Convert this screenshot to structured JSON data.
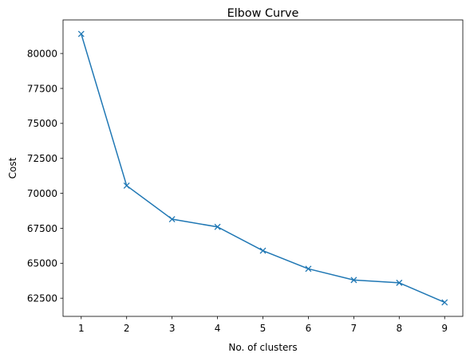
{
  "chart_data": {
    "type": "line",
    "title": "Elbow Curve",
    "xlabel": "No. of clusters",
    "ylabel": "Cost",
    "x": [
      1,
      2,
      3,
      4,
      5,
      6,
      7,
      8,
      9
    ],
    "series": [
      {
        "values": [
          81400,
          70550,
          68150,
          67600,
          65900,
          64600,
          63800,
          63600,
          62200
        ],
        "color": "#1f77b4",
        "marker": "x"
      }
    ],
    "xlim": [
      0.6,
      9.4
    ],
    "ylim": [
      61200,
      82400
    ],
    "xticks": [
      1,
      2,
      3,
      4,
      5,
      6,
      7,
      8,
      9
    ],
    "yticks": [
      62500,
      65000,
      67500,
      70000,
      72500,
      75000,
      77500,
      80000
    ],
    "grid": false,
    "legend": "none"
  }
}
